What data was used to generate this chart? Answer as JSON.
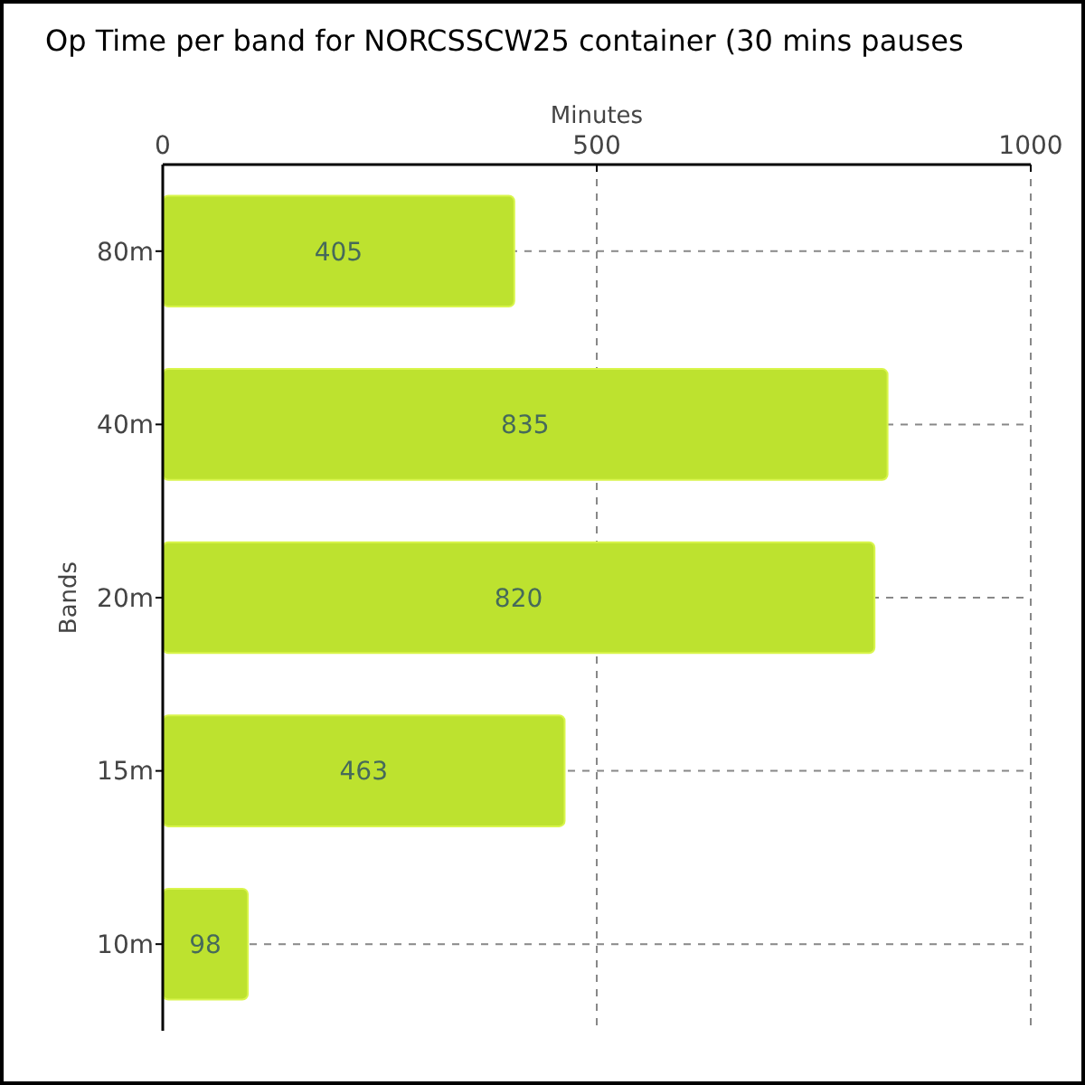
{
  "chart_data": {
    "type": "bar",
    "orientation": "horizontal",
    "title": "Op Time per band for NORCSSCW25 container (30 mins pauses",
    "xlabel": "Minutes",
    "ylabel": "Bands",
    "categories": [
      "80m",
      "40m",
      "20m",
      "15m",
      "10m"
    ],
    "values": [
      405,
      835,
      820,
      463,
      98
    ],
    "color": "#bde22f",
    "xlim": [
      0,
      1000
    ],
    "xticks": [
      0,
      500,
      1000
    ],
    "grid": true,
    "data_labels": true
  }
}
